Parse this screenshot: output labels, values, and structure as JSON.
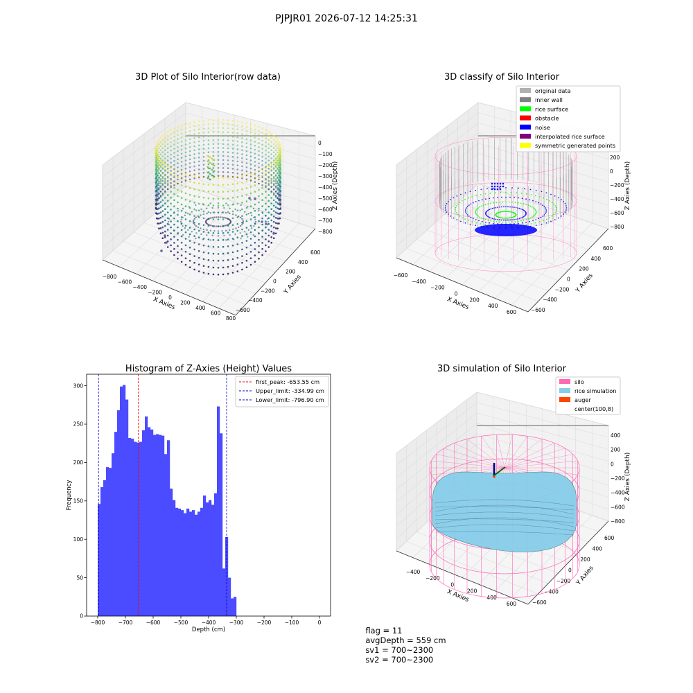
{
  "suptitle": "PJPJR01 2026-07-12 14:25:31",
  "colors": {
    "viridis_low": "#440154",
    "viridis_mid": "#21908c",
    "viridis_high": "#fde725",
    "hist_bar": "#4b4bff",
    "peak_line": "#ff0000",
    "limit_line": "#0000cc",
    "silo_wire": "#ff69b4",
    "rice_sim": "#87ceeb",
    "auger": "#ff4500"
  },
  "chart_data": [
    {
      "type": "scatter",
      "subtype": "3d",
      "title": "3D Plot of Silo Interior(row data)",
      "xlabel": "X Axies",
      "ylabel": "Y Axies",
      "zlabel": "Z Axies (Depth)",
      "xticks": [
        "−800",
        "−600",
        "−400",
        "−200",
        "0",
        "200",
        "400",
        "600",
        "800"
      ],
      "yticks": [
        "−600",
        "−400",
        "−200",
        "0",
        "200",
        "400",
        "600"
      ],
      "zticks": [
        "0",
        "−100",
        "−200",
        "−300",
        "−400",
        "−500",
        "−600",
        "−700",
        "−800"
      ],
      "xlim": [
        -800,
        800
      ],
      "ylim": [
        -600,
        600
      ],
      "zlim": [
        -850,
        50
      ],
      "colormap": "viridis",
      "grid": true
    },
    {
      "type": "scatter",
      "subtype": "3d",
      "title": "3D classify of Silo Interior",
      "xlabel": "X Axies",
      "ylabel": "Y Axies",
      "zlabel": "Z Axies (Depth)",
      "xticks": [
        "−600",
        "−400",
        "−200",
        "0",
        "200",
        "400",
        "600"
      ],
      "yticks": [
        "−600",
        "−400",
        "−200",
        "0",
        "200",
        "400",
        "600"
      ],
      "zticks": [
        "200",
        "0",
        "−200",
        "−400",
        "−600",
        "−800"
      ],
      "legend_position": "top-right",
      "legend": [
        {
          "name": "original data",
          "color": "#b0b0b0"
        },
        {
          "name": "inner wall",
          "color": "#808080"
        },
        {
          "name": "rice surface",
          "color": "#00ff00"
        },
        {
          "name": "obstacle",
          "color": "#ff0000"
        },
        {
          "name": "noise",
          "color": "#0000ff"
        },
        {
          "name": "interpolated rice surface",
          "color": "#800080"
        },
        {
          "name": "symmetric generated points",
          "color": "#ffff00"
        }
      ],
      "grid": true
    },
    {
      "type": "bar",
      "subtype": "histogram",
      "title": "Histogram of Z-Axies (Height) Values",
      "xlabel": "Depth (cm)",
      "ylabel": "Frequency",
      "xlim": [
        -840,
        40
      ],
      "ylim": [
        0,
        315
      ],
      "xticks": [
        -800,
        -700,
        -600,
        -500,
        -400,
        -300,
        -200,
        -100,
        0
      ],
      "xtick_labels": [
        "−800",
        "−700",
        "−600",
        "−500",
        "−400",
        "−300",
        "−200",
        "−100",
        "0"
      ],
      "yticks": [
        0,
        50,
        100,
        150,
        200,
        250,
        300
      ],
      "bin_start": -800,
      "bin_width": 10,
      "values": [
        146,
        168,
        177,
        194,
        193,
        212,
        240,
        268,
        299,
        301,
        282,
        232,
        231,
        227,
        226,
        227,
        242,
        260,
        246,
        243,
        236,
        237,
        236,
        235,
        211,
        229,
        166,
        151,
        141,
        140,
        138,
        134,
        140,
        136,
        138,
        132,
        136,
        141,
        157,
        148,
        151,
        145,
        160,
        273,
        238,
        62,
        103,
        50,
        23,
        25
      ],
      "vlines": [
        {
          "x": -653.55,
          "color": "#ff0000",
          "label": "first_peak: -653.55 cm"
        },
        {
          "x": -334.99,
          "color": "#0000cc",
          "label": "Upper_limit: -334.99 cm"
        },
        {
          "x": -796.9,
          "color": "#0000cc",
          "label": "Lower_limit: -796.90 cm"
        }
      ],
      "legend_position": "top-right",
      "grid": false
    },
    {
      "type": "area",
      "subtype": "3d-surface",
      "title": "3D simulation of Silo Interior",
      "xlabel": "X Axies",
      "ylabel": "Y Axies",
      "zlabel": "Z Axies (Depth)",
      "xticks": [
        "−400",
        "−200",
        "0",
        "200",
        "400",
        "600"
      ],
      "yticks": [
        "−600",
        "−400",
        "−200",
        "0",
        "200",
        "400",
        "600"
      ],
      "zticks": [
        "400",
        "200",
        "0",
        "−200",
        "−400",
        "−600",
        "−800"
      ],
      "legend_position": "top-right",
      "legend": [
        {
          "name": "silo",
          "color": "#ff69b4"
        },
        {
          "name": "rice simulation",
          "color": "#87ceeb"
        },
        {
          "name": "auger",
          "color": "#ff4500"
        },
        {
          "name": "center(100,8)",
          "color": ""
        }
      ],
      "grid": true
    }
  ],
  "footer": {
    "flag": "flag = 11",
    "avg": "avgDepth = 559 cm",
    "sv1": "sv1 = 700~2300",
    "sv2": "sv2 = 700~2300"
  }
}
